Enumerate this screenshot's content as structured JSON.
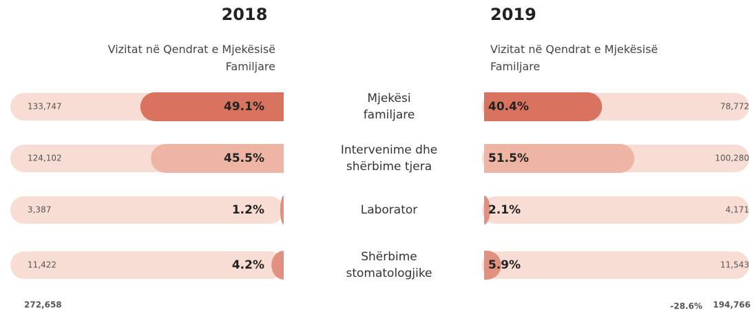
{
  "categories": [
    "Mjekësi familjare",
    "Intervenime dhe shërbime tjera",
    "Laborator",
    "Shërbime stomatologjike"
  ],
  "chart_data": [
    {
      "type": "bar",
      "title": "2018",
      "subtitle": "Vizitat në Qendrat e Mjekësisë Familjare",
      "values": [
        49.1,
        45.5,
        1.2,
        4.2
      ],
      "value_labels": [
        "49.1%",
        "45.5%",
        "1.2%",
        "4.2%"
      ],
      "counts": [
        133747,
        124102,
        3387,
        11422
      ],
      "count_labels": [
        "133,747",
        "124,102",
        "3,387",
        "11,422"
      ],
      "total": 272658,
      "total_label": "272,658",
      "colors": [
        "#d8735f",
        "#efb5a4",
        "#e0917f",
        "#e0917f"
      ],
      "xlim": [
        0,
        100
      ]
    },
    {
      "type": "bar",
      "title": "2019",
      "subtitle": "Vizitat në Qendrat e Mjekësisë Familjare",
      "values": [
        40.4,
        51.5,
        2.1,
        5.9
      ],
      "value_labels": [
        "40.4%",
        "51.5%",
        "2.1%",
        "5.9%"
      ],
      "counts": [
        78772,
        100280,
        4171,
        11543
      ],
      "count_labels": [
        "78,772",
        "100,280",
        "4,171",
        "11,543"
      ],
      "total": 194766,
      "total_label": "194,766",
      "change": -28.6,
      "change_label": "-28.6%",
      "colors": [
        "#d8735f",
        "#efb5a4",
        "#e0917f",
        "#e0917f"
      ],
      "xlim": [
        0,
        100
      ]
    }
  ]
}
